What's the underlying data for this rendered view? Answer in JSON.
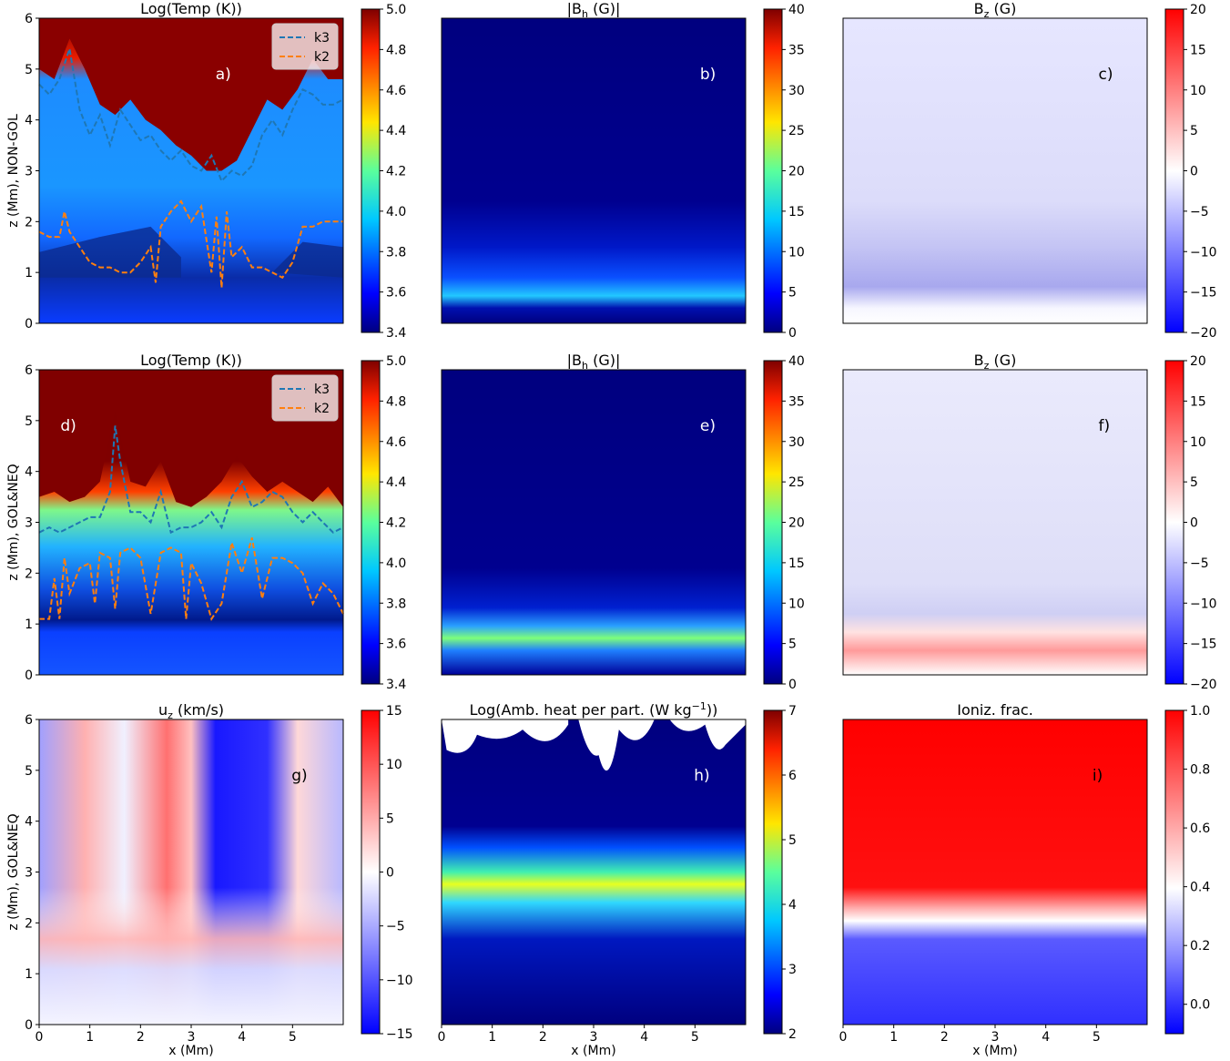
{
  "chart_data": [
    {
      "panel": "a",
      "type": "heatmap",
      "title": "Log(Temp (K))",
      "title_main": "Log(Temp (K))",
      "title_sub": "",
      "title_tail": "",
      "panel_label": "a)",
      "ylabel": "z (Mm), NON-GOL",
      "xlabel": "",
      "xlim": [
        0,
        6
      ],
      "ylim": [
        0,
        6
      ],
      "colormap": "jet",
      "colorbar_range": [
        3.4,
        5.0
      ],
      "colorbar_ticks": [
        "3.4",
        "3.6",
        "3.8",
        "4.0",
        "4.2",
        "4.4",
        "4.6",
        "4.8",
        "5.0"
      ],
      "legend": {
        "placement": "top-right",
        "entries": [
          {
            "label": "k3",
            "color": "#1f77b4"
          },
          {
            "label": "k2",
            "color": "#ff7f0e"
          }
        ]
      },
      "series": [
        {
          "name": "k3",
          "color": "#1f77b4",
          "x": [
            0,
            0.2,
            0.4,
            0.6,
            0.8,
            1.0,
            1.2,
            1.4,
            1.6,
            1.8,
            2.0,
            2.2,
            2.4,
            2.6,
            2.8,
            3.0,
            3.2,
            3.4,
            3.6,
            3.8,
            4.0,
            4.2,
            4.4,
            4.6,
            4.8,
            5.0,
            5.2,
            5.4,
            5.6,
            5.8,
            6.0
          ],
          "y": [
            4.7,
            4.5,
            4.8,
            5.4,
            4.2,
            3.7,
            4.1,
            3.5,
            4.2,
            3.9,
            3.6,
            3.7,
            3.4,
            3.2,
            3.4,
            3.1,
            3.0,
            3.3,
            2.8,
            3.0,
            2.9,
            3.1,
            3.7,
            4.0,
            3.7,
            4.2,
            4.6,
            4.5,
            4.3,
            4.3,
            4.4
          ]
        },
        {
          "name": "k2",
          "color": "#ff7f0e",
          "x": [
            0,
            0.2,
            0.4,
            0.5,
            0.6,
            0.8,
            1.0,
            1.2,
            1.4,
            1.6,
            1.8,
            2.0,
            2.2,
            2.3,
            2.4,
            2.6,
            2.8,
            3.0,
            3.2,
            3.4,
            3.5,
            3.6,
            3.7,
            3.8,
            4.0,
            4.2,
            4.4,
            4.6,
            4.8,
            5.0,
            5.2,
            5.4,
            5.6,
            5.8,
            6.0
          ],
          "y": [
            1.8,
            1.7,
            1.7,
            2.2,
            1.8,
            1.5,
            1.2,
            1.1,
            1.1,
            1.0,
            1.0,
            1.2,
            1.5,
            0.8,
            1.9,
            2.2,
            2.4,
            2.0,
            2.3,
            1.0,
            2.1,
            0.7,
            2.2,
            1.3,
            1.5,
            1.1,
            1.1,
            1.0,
            0.9,
            1.2,
            1.9,
            1.9,
            2.0,
            2.0,
            2.0
          ]
        }
      ]
    },
    {
      "panel": "b",
      "type": "heatmap",
      "title": "|B_h (G)|",
      "title_main": "|B",
      "title_sub": "h",
      "title_tail": " (G)|",
      "panel_label": "b)",
      "ylabel": "",
      "xlabel": "",
      "xlim": [
        0,
        6
      ],
      "ylim": [
        0,
        6
      ],
      "colormap": "jet",
      "colorbar_range": [
        0,
        40
      ],
      "colorbar_ticks": [
        "0",
        "5",
        "10",
        "15",
        "20",
        "25",
        "30",
        "35",
        "40"
      ]
    },
    {
      "panel": "c",
      "type": "heatmap",
      "title": "B_z (G)",
      "title_main": "B",
      "title_sub": "z",
      "title_tail": " (G)",
      "panel_label": "c)",
      "ylabel": "",
      "xlabel": "",
      "xlim": [
        0,
        6
      ],
      "ylim": [
        0,
        6
      ],
      "colormap": "bwr",
      "colorbar_range": [
        -20,
        20
      ],
      "colorbar_ticks": [
        "−20",
        "−15",
        "−10",
        "−5",
        "0",
        "5",
        "10",
        "15",
        "20"
      ]
    },
    {
      "panel": "d",
      "type": "heatmap",
      "title": "Log(Temp (K))",
      "title_main": "Log(Temp (K))",
      "title_sub": "",
      "title_tail": "",
      "panel_label": "d)",
      "ylabel": "z (Mm), GOL&NEQ",
      "xlabel": "",
      "xlim": [
        0,
        6
      ],
      "ylim": [
        0,
        6
      ],
      "colormap": "jet",
      "colorbar_range": [
        3.4,
        5.0
      ],
      "colorbar_ticks": [
        "3.4",
        "3.6",
        "3.8",
        "4.0",
        "4.2",
        "4.4",
        "4.6",
        "4.8",
        "5.0"
      ],
      "legend": {
        "placement": "top-right",
        "entries": [
          {
            "label": "k3",
            "color": "#1f77b4"
          },
          {
            "label": "k2",
            "color": "#ff7f0e"
          }
        ]
      },
      "series": [
        {
          "name": "k3",
          "color": "#1f77b4",
          "x": [
            0,
            0.2,
            0.4,
            0.6,
            0.8,
            1.0,
            1.2,
            1.4,
            1.5,
            1.6,
            1.8,
            2.0,
            2.2,
            2.4,
            2.6,
            2.8,
            3.0,
            3.2,
            3.4,
            3.6,
            3.8,
            4.0,
            4.2,
            4.4,
            4.6,
            4.8,
            5.0,
            5.2,
            5.4,
            5.6,
            5.8,
            6.0
          ],
          "y": [
            2.8,
            2.9,
            2.8,
            2.9,
            3.0,
            3.1,
            3.1,
            3.6,
            4.9,
            4.2,
            3.2,
            3.2,
            3.0,
            3.6,
            2.8,
            2.9,
            2.9,
            3.0,
            3.2,
            2.9,
            3.5,
            3.8,
            3.3,
            3.4,
            3.6,
            3.5,
            3.2,
            3.0,
            3.2,
            3.0,
            2.8,
            2.9
          ]
        },
        {
          "name": "k2",
          "color": "#ff7f0e",
          "x": [
            0,
            0.2,
            0.3,
            0.4,
            0.5,
            0.6,
            0.8,
            1.0,
            1.1,
            1.2,
            1.4,
            1.5,
            1.6,
            1.8,
            2.0,
            2.2,
            2.4,
            2.6,
            2.8,
            2.9,
            3.0,
            3.2,
            3.4,
            3.6,
            3.8,
            4.0,
            4.2,
            4.4,
            4.6,
            4.8,
            5.0,
            5.2,
            5.4,
            5.6,
            5.8,
            6.0
          ],
          "y": [
            1.1,
            1.1,
            1.9,
            1.1,
            2.3,
            1.6,
            2.1,
            2.2,
            1.4,
            2.4,
            2.3,
            1.3,
            2.4,
            2.5,
            2.3,
            1.2,
            2.4,
            2.5,
            2.4,
            1.1,
            2.2,
            1.8,
            1.1,
            1.4,
            2.6,
            2.0,
            2.7,
            1.5,
            2.3,
            2.3,
            2.2,
            2.0,
            1.4,
            1.8,
            1.6,
            1.2
          ]
        }
      ]
    },
    {
      "panel": "e",
      "type": "heatmap",
      "title": "|B_h (G)|",
      "title_main": "|B",
      "title_sub": "h",
      "title_tail": " (G)|",
      "panel_label": "e)",
      "ylabel": "",
      "xlabel": "",
      "xlim": [
        0,
        6
      ],
      "ylim": [
        0,
        6
      ],
      "colormap": "jet",
      "colorbar_range": [
        0,
        40
      ],
      "colorbar_ticks": [
        "0",
        "5",
        "10",
        "15",
        "20",
        "25",
        "30",
        "35",
        "40"
      ]
    },
    {
      "panel": "f",
      "type": "heatmap",
      "title": "B_z (G)",
      "title_main": "B",
      "title_sub": "z",
      "title_tail": " (G)",
      "panel_label": "f)",
      "ylabel": "",
      "xlabel": "",
      "xlim": [
        0,
        6
      ],
      "ylim": [
        0,
        6
      ],
      "colormap": "bwr",
      "colorbar_range": [
        -20,
        20
      ],
      "colorbar_ticks": [
        "−20",
        "−15",
        "−10",
        "−5",
        "0",
        "5",
        "10",
        "15",
        "20"
      ]
    },
    {
      "panel": "g",
      "type": "heatmap",
      "title": "u_z (km/s)",
      "title_main": "u",
      "title_sub": "z",
      "title_tail": " (km/s)",
      "panel_label": "g)",
      "ylabel": "z (Mm), GOL&NEQ",
      "xlabel": "x (Mm)",
      "xlim": [
        0,
        6
      ],
      "ylim": [
        0,
        6
      ],
      "colormap": "bwr",
      "colorbar_range": [
        -15,
        15
      ],
      "colorbar_ticks": [
        "−15",
        "−10",
        "−5",
        "0",
        "5",
        "10",
        "15"
      ]
    },
    {
      "panel": "h",
      "type": "heatmap",
      "title": "Log(Amb. heat per part. (W kg^-1))",
      "title_main": "Log(Amb. heat per part. (W kg",
      "title_sub": "−1",
      "title_tail": "))",
      "panel_label": "h)",
      "ylabel": "",
      "xlabel": "x (Mm)",
      "xlim": [
        0,
        6
      ],
      "ylim": [
        0,
        6
      ],
      "colormap": "jet",
      "colorbar_range": [
        2,
        7
      ],
      "colorbar_ticks": [
        "2",
        "3",
        "4",
        "5",
        "6",
        "7"
      ]
    },
    {
      "panel": "i",
      "type": "heatmap",
      "title": "Ioniz. frac.",
      "title_main": "Ioniz. frac.",
      "title_sub": "",
      "title_tail": "",
      "panel_label": "i)",
      "ylabel": "",
      "xlabel": "x (Mm)",
      "xlim": [
        0,
        6
      ],
      "ylim": [
        0,
        6
      ],
      "colormap": "bwr",
      "colorbar_range": [
        -0.1,
        1.0
      ],
      "colorbar_ticks": [
        "0.0",
        "0.2",
        "0.4",
        "0.6",
        "0.8",
        "1.0"
      ]
    }
  ],
  "axes": {
    "x_ticks": [
      "0",
      "1",
      "2",
      "3",
      "4",
      "5"
    ],
    "y_ticks": [
      "0",
      "1",
      "2",
      "3",
      "4",
      "5",
      "6"
    ]
  },
  "colors": {
    "k3": "#1f77b4",
    "k2": "#ff7f0e"
  }
}
